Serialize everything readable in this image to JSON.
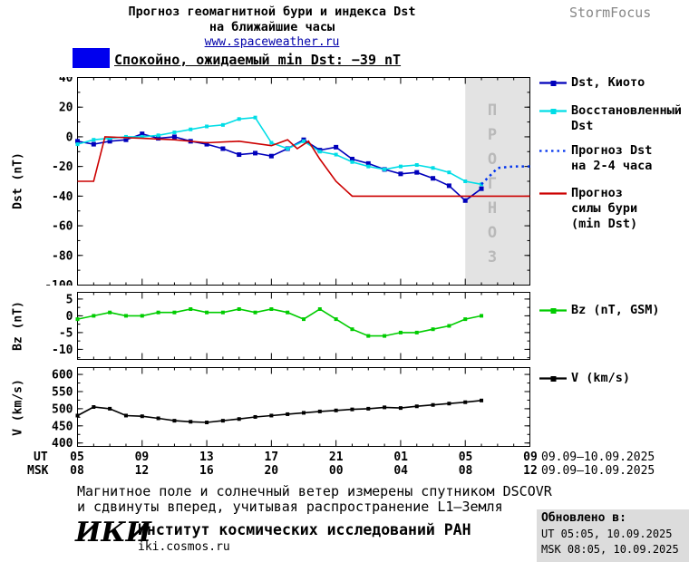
{
  "header": {
    "title_line1": "Прогноз геомагнитной бури и индекса Dst",
    "title_line2": "на ближайшие часы",
    "site": "www.spaceweather.ru",
    "brand": "StormFocus"
  },
  "status": {
    "text": "Спокойно, ожидаемый min Dst: −39 nT"
  },
  "colors": {
    "dst_kyoto": "#0000bb",
    "reconstructed": "#00dde6",
    "forecast_dst": "#0033ee",
    "storm_forecast": "#cc0000",
    "bz": "#00cc00",
    "v": "#000000",
    "status_swatch": "#0000ee",
    "forecast_band_fill": "#e3e3e3",
    "forecast_band_text": "#b9b9b9",
    "updated_box_bg": "#dcdcdc"
  },
  "chart_data": [
    {
      "type": "line",
      "title": "Прогноз геомагнитной бури и индекса Dst на ближайшие часы",
      "ylabel": "Dst (nT)",
      "xlabel": "UT/MSK, часы",
      "ylim": [
        -100,
        40
      ],
      "xlim": [
        0,
        28
      ],
      "x_unit": "hours since 05:00 UT 09.09.2025",
      "grid": false,
      "legend_position": "right",
      "yticks": [
        40,
        20,
        0,
        -20,
        -40,
        -60,
        -80,
        -100
      ],
      "yminor": 10,
      "xticks_hours": [
        0,
        4,
        8,
        12,
        16,
        20,
        24,
        28
      ],
      "forecast_band": {
        "x_range": [
          24,
          28
        ],
        "label": "ПРОГНОЗ"
      },
      "series": [
        {
          "name": "Dst, Киото",
          "color": "#0000bb",
          "marker": "square",
          "msize": 5,
          "x": [
            0,
            1,
            2,
            3,
            4,
            5,
            6,
            7,
            8,
            9,
            10,
            11,
            12,
            13,
            14,
            15,
            16,
            17,
            18,
            19,
            20,
            21,
            22,
            23,
            24,
            25
          ],
          "y": [
            -3,
            -5,
            -3,
            -2,
            2,
            -1,
            0,
            -3,
            -5,
            -8,
            -12,
            -11,
            -13,
            -8,
            -2,
            -9,
            -7,
            -15,
            -18,
            -22,
            -25,
            -24,
            -28,
            -33,
            -43,
            -35
          ]
        },
        {
          "name": "Восстановленный Dst",
          "color": "#00dde6",
          "marker": "square",
          "msize": 4,
          "x": [
            0,
            1,
            2,
            3,
            4,
            5,
            6,
            7,
            8,
            9,
            10,
            11,
            12,
            13,
            14,
            15,
            16,
            17,
            18,
            19,
            20,
            21,
            22,
            23,
            24,
            25
          ],
          "y": [
            -5,
            -2,
            -1,
            0,
            0,
            1,
            3,
            5,
            7,
            8,
            12,
            13,
            -4,
            -8,
            -3,
            -10,
            -12,
            -17,
            -20,
            -22,
            -20,
            -19,
            -21,
            -24,
            -30,
            -32
          ]
        },
        {
          "name": "Прогноз Dst на 2-4 часа",
          "color": "#0033ee",
          "marker": "none",
          "dash": true,
          "width": 2.5,
          "x": [
            25,
            26,
            27,
            28
          ],
          "y": [
            -32,
            -21,
            -20,
            -20
          ]
        },
        {
          "name": "Прогноз силы бури (min Dst)",
          "color": "#cc0000",
          "marker": "none",
          "x": [
            0,
            1,
            1.7,
            4,
            6,
            8,
            10,
            12,
            13,
            13.6,
            14.3,
            15,
            16,
            17,
            28
          ],
          "y": [
            -30,
            -30,
            0,
            -1,
            -2,
            -4,
            -3,
            -6,
            -2,
            -8,
            -3,
            -15,
            -30,
            -40,
            -40
          ]
        }
      ]
    },
    {
      "type": "line",
      "ylabel": "Bz (nT)",
      "ylim": [
        -13,
        7
      ],
      "xlim": [
        0,
        28
      ],
      "grid": false,
      "yticks": [
        5,
        0,
        -5,
        -10
      ],
      "yminor": 2.5,
      "xticks_hours": [
        0,
        4,
        8,
        12,
        16,
        20,
        24,
        28
      ],
      "series": [
        {
          "name": "Bz (nT, GSM)",
          "color": "#00cc00",
          "marker": "square",
          "msize": 4,
          "x": [
            0,
            1,
            2,
            3,
            4,
            5,
            6,
            7,
            8,
            9,
            10,
            11,
            12,
            13,
            14,
            15,
            16,
            17,
            18,
            19,
            20,
            21,
            22,
            23,
            24,
            25
          ],
          "y": [
            -1,
            0,
            1,
            0,
            0,
            1,
            1,
            2,
            1,
            1,
            2,
            1,
            2,
            1,
            -1,
            2,
            -1,
            -4,
            -6,
            -6,
            -5,
            -5,
            -4,
            -3,
            -1,
            0
          ]
        }
      ]
    },
    {
      "type": "line",
      "ylabel": "V (km/s)",
      "ylim": [
        390,
        620
      ],
      "xlim": [
        0,
        28
      ],
      "grid": false,
      "yticks": [
        600,
        550,
        500,
        450,
        400
      ],
      "yminor": 25,
      "xticks_hours": [
        0,
        4,
        8,
        12,
        16,
        20,
        24,
        28
      ],
      "series": [
        {
          "name": "V (km/s)",
          "color": "#000000",
          "marker": "square",
          "msize": 4,
          "x": [
            0,
            1,
            2,
            3,
            4,
            5,
            6,
            7,
            8,
            9,
            10,
            11,
            12,
            13,
            14,
            15,
            16,
            17,
            18,
            19,
            20,
            21,
            22,
            23,
            24,
            25
          ],
          "y": [
            480,
            505,
            500,
            480,
            478,
            472,
            465,
            462,
            460,
            465,
            470,
            476,
            480,
            484,
            488,
            492,
            495,
            498,
            500,
            504,
            502,
            507,
            511,
            515,
            519,
            524
          ]
        }
      ]
    }
  ],
  "legend": {
    "dst_kyoto": "Dst, Киото",
    "reconstructed": [
      "Восстановленный",
      "Dst"
    ],
    "forecast": [
      "Прогноз Dst",
      "на 2-4 часа"
    ],
    "storm": [
      "Прогноз",
      "силы бури",
      "(min Dst)"
    ],
    "bz": "Bz (nT, GSM)",
    "v": "V (km/s)"
  },
  "xaxis": {
    "ut_label": "UT",
    "msk_label": "MSK",
    "ut_ticks": [
      "05",
      "09",
      "13",
      "17",
      "21",
      "01",
      "05",
      "09"
    ],
    "msk_ticks": [
      "08",
      "12",
      "16",
      "20",
      "00",
      "04",
      "08",
      "12"
    ],
    "ut_daterange": "09.09–10.09.2025",
    "msk_daterange": "09.09–10.09.2025"
  },
  "footer": {
    "note_line1": "Магнитное поле и солнечный ветер измерены спутником DSCOVR",
    "note_line2": "и сдвинуты вперед, учитывая распространение L1—Земля",
    "logo": "ИКИ",
    "institute": "Институт космических исследований РАН",
    "site": "iki.cosmos.ru"
  },
  "updated": {
    "label": "Обновлено в:",
    "ut": "UT  05:05, 10.09.2025",
    "msk": "MSK 08:05, 10.09.2025"
  }
}
